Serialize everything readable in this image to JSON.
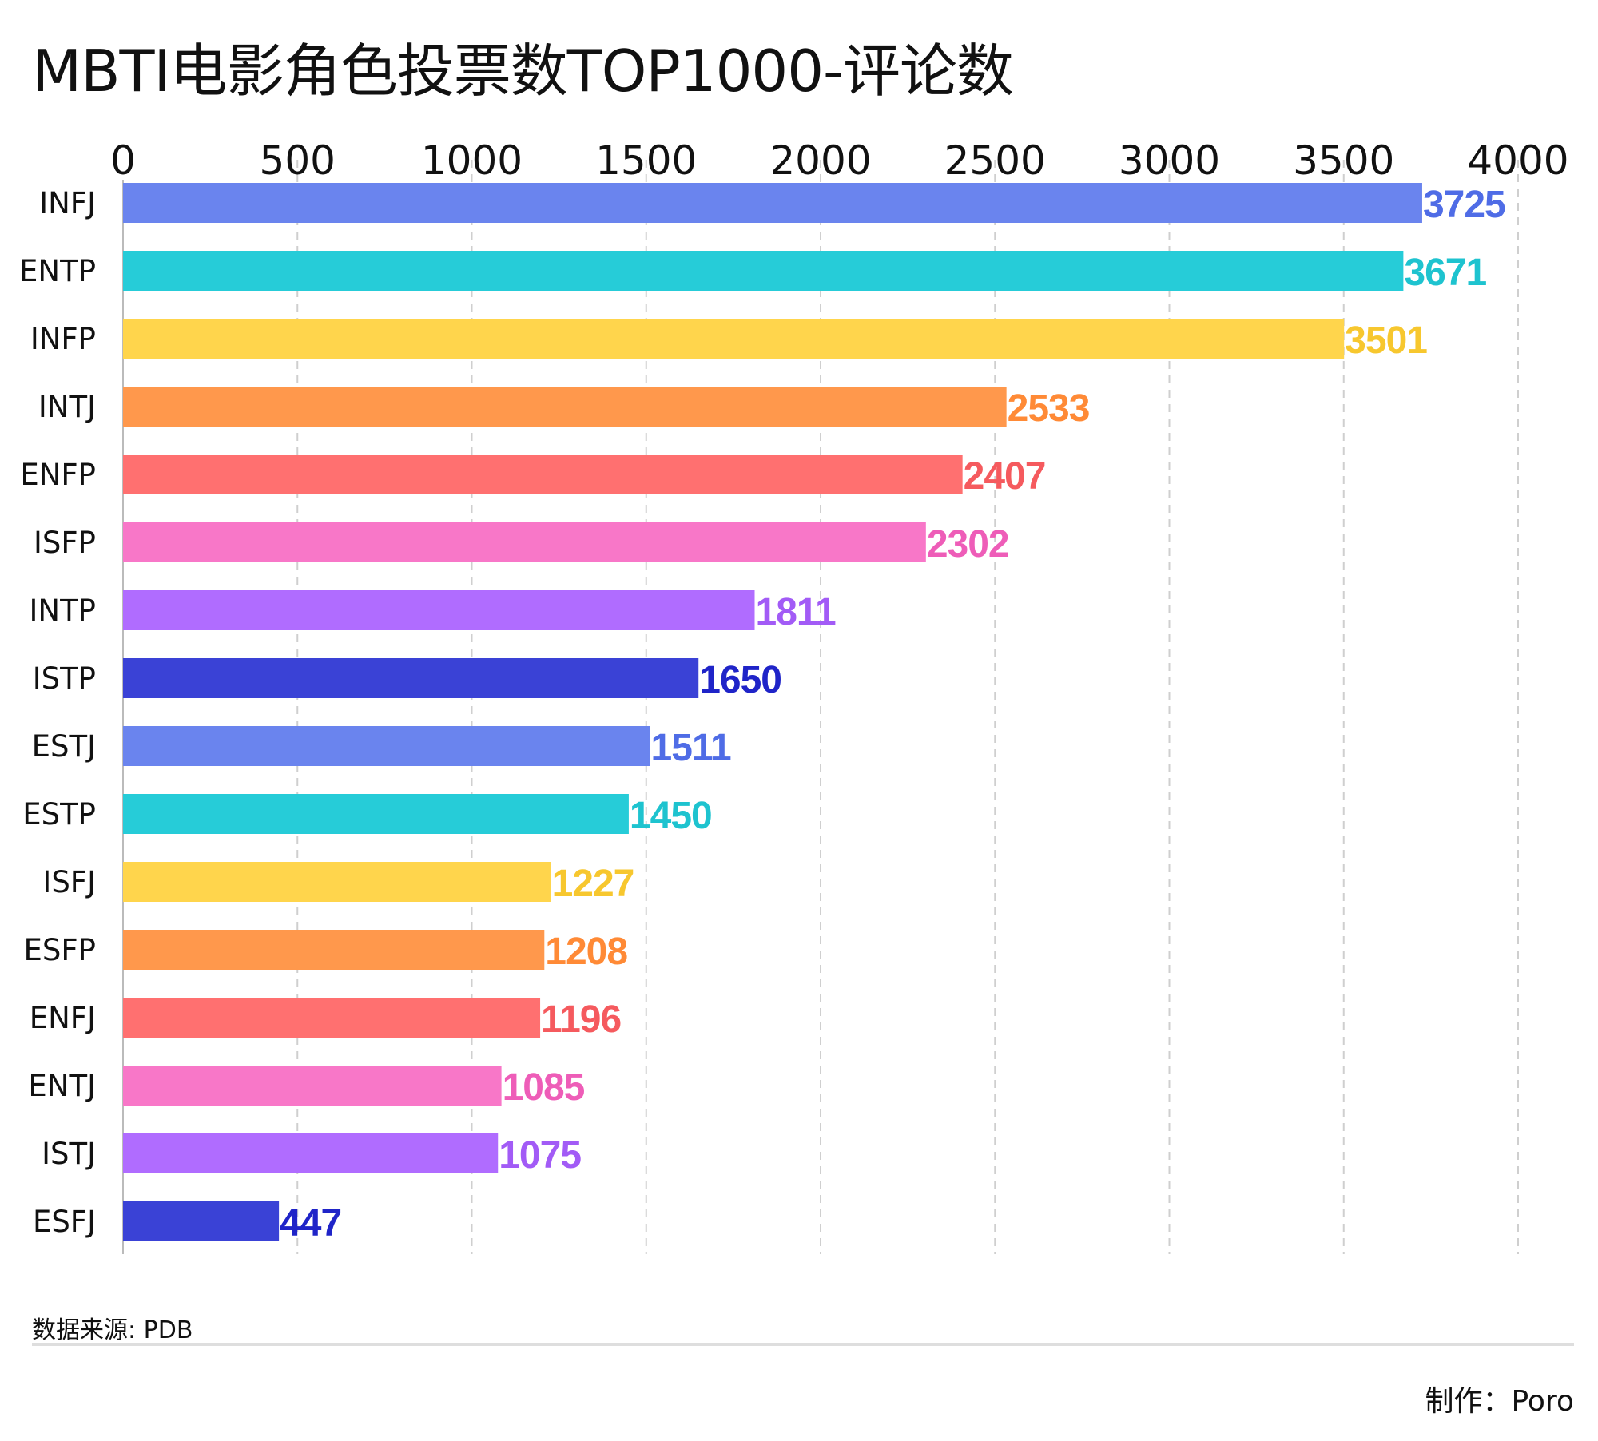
{
  "title": "MBTI电影角色投票数TOP1000-评论数",
  "footer": {
    "source": "数据来源: PDB",
    "credit": "制作：Poro"
  },
  "chart_data": {
    "type": "bar",
    "orientation": "horizontal",
    "title": "MBTI电影角色投票数TOP1000-评论数",
    "xlabel": "",
    "ylabel": "",
    "xlim": [
      0,
      4000
    ],
    "xticks": [
      0,
      500,
      1000,
      1500,
      2000,
      2500,
      3000,
      3500,
      4000
    ],
    "grid": "vertical dashed",
    "axis_position": "top",
    "categories": [
      "INFJ",
      "ENTP",
      "INFP",
      "INTJ",
      "ENFP",
      "ISFP",
      "INTP",
      "ISTP",
      "ESTJ",
      "ESTP",
      "ISFJ",
      "ESFP",
      "ENFJ",
      "ENTJ",
      "ISTJ",
      "ESFJ"
    ],
    "values": [
      3725,
      3671,
      3501,
      2533,
      2407,
      2302,
      1811,
      1650,
      1511,
      1450,
      1227,
      1208,
      1196,
      1085,
      1075,
      447
    ],
    "bar_colors": [
      "#6a84ee",
      "#26ccd8",
      "#ffd54c",
      "#ff984c",
      "#ff7070",
      "#f877c8",
      "#b06cff",
      "#3a42d6",
      "#6a84ee",
      "#26ccd8",
      "#ffd54c",
      "#ff984c",
      "#ff7070",
      "#f877c8",
      "#b06cff",
      "#3a42d6"
    ],
    "label_colors": [
      "#4f6ce6",
      "#1ec3cf",
      "#f7c72e",
      "#ff8a36",
      "#f55a5e",
      "#ee5db8",
      "#a25bf6",
      "#1f24c8",
      "#4f6ce6",
      "#1ec3cf",
      "#f7c72e",
      "#ff8a36",
      "#f55a5e",
      "#ee5db8",
      "#a25bf6",
      "#1f24c8"
    ]
  }
}
